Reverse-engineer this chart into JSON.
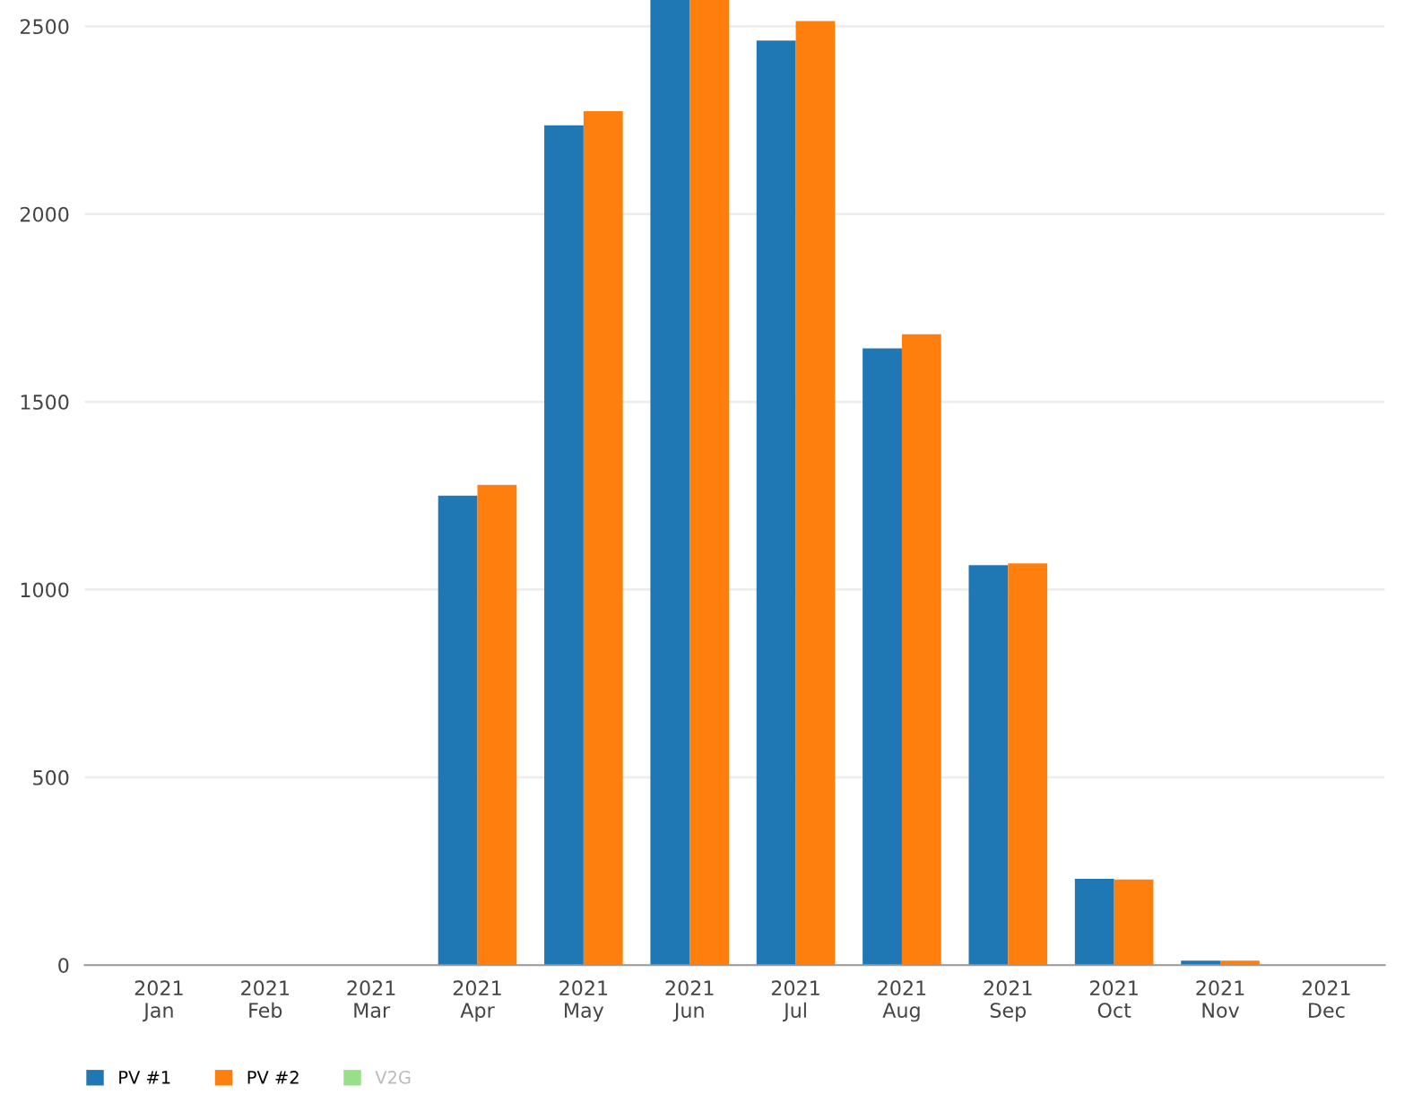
{
  "chart_data": {
    "type": "bar",
    "categories": [
      "2021\nJan",
      "2021\nFeb",
      "2021\nMar",
      "2021\nApr",
      "2021\nMay",
      "2021\nJun",
      "2021\nJul",
      "2021\nAug",
      "2021\nSep",
      "2021\nOct",
      "2021\nNov",
      "2021\nDec"
    ],
    "series": [
      {
        "name": "PV #1",
        "color": "#1f77b4",
        "values": [
          0,
          0,
          null,
          1250,
          2236,
          2570,
          2462,
          1642,
          1065,
          230,
          12,
          0
        ]
      },
      {
        "name": "PV #2",
        "color": "#ff7f0e",
        "values": [
          0,
          0,
          null,
          1279,
          2274,
          2570,
          2514,
          1680,
          1070,
          228,
          12,
          0
        ]
      },
      {
        "name": "V2G",
        "color": "#98df8a",
        "values": [
          null,
          null,
          null,
          null,
          null,
          null,
          null,
          null,
          null,
          null,
          null,
          null
        ]
      }
    ],
    "ylim": [
      0,
      2570
    ],
    "yticks": [
      0,
      500,
      1000,
      1500,
      2000,
      2500
    ],
    "grid": "y",
    "legend": "bottom left"
  }
}
